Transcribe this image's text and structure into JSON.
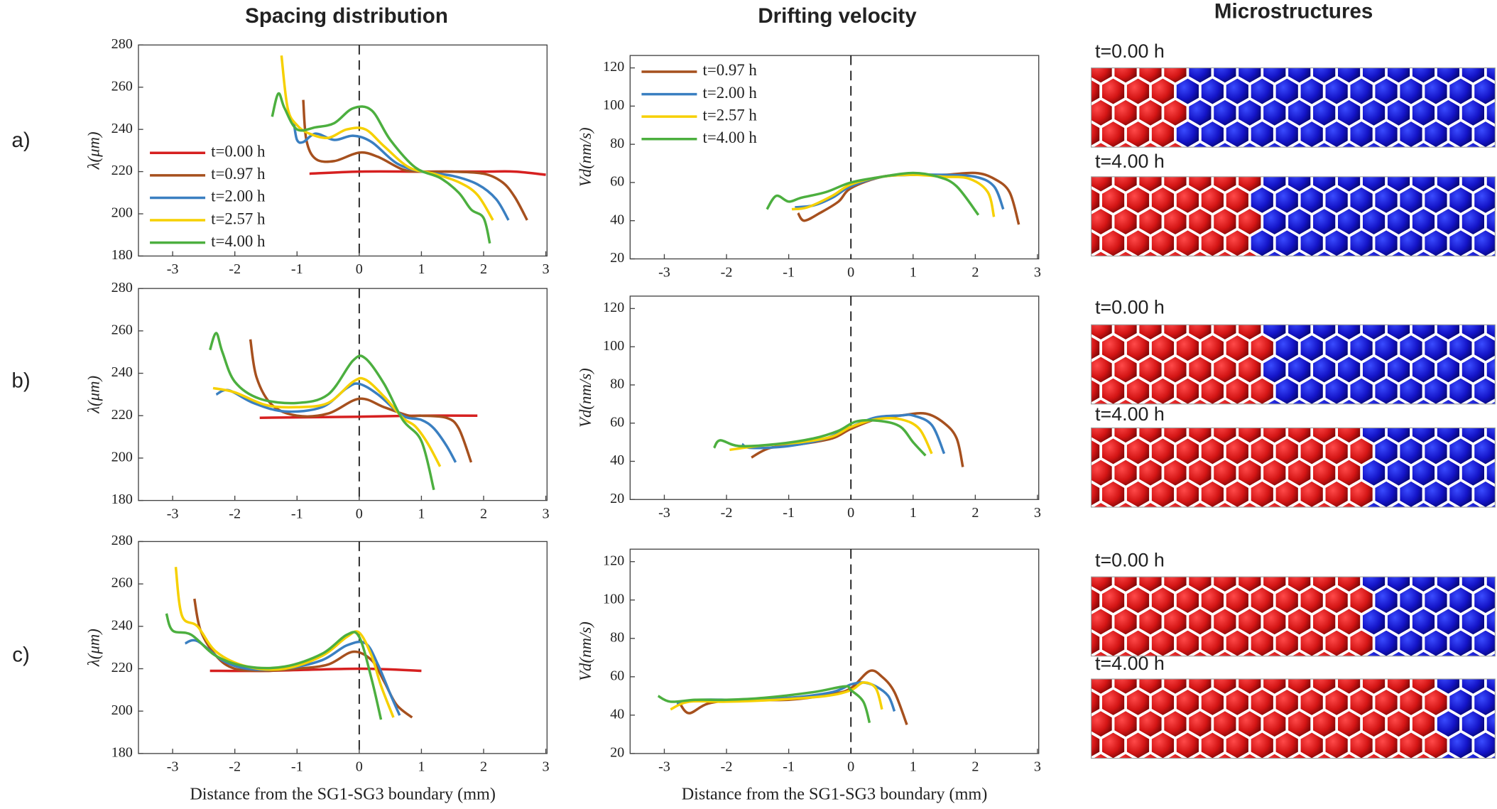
{
  "column_titles": [
    "Spacing distribution",
    "Drifting velocity",
    "Microstructures"
  ],
  "row_labels": [
    "a)",
    "b)",
    "c)"
  ],
  "microstructures": [
    [
      "t=0.00 h",
      "t=4.00 h"
    ],
    [
      "t=0.00 h",
      "t=4.00 h"
    ],
    [
      "t=0.00 h",
      "t=4.00 h"
    ]
  ],
  "chart_data": [
    {
      "type": "line",
      "ylabel": "λ(μm)",
      "xlim": [
        -3.55,
        3.02
      ],
      "ylim": [
        180,
        280
      ],
      "xticks": [
        -3,
        -2,
        -1,
        0,
        1,
        2,
        3
      ],
      "yticks": [
        180,
        200,
        220,
        240,
        260,
        280
      ],
      "reference_line": {
        "x": 0,
        "style": "dashed"
      },
      "legend": "lower-left",
      "series": [
        {
          "name": "t=0.00 h",
          "color": "#d62020",
          "x": [
            -0.8,
            0,
            1,
            2,
            2.5,
            3.0
          ],
          "values": [
            219,
            220,
            220,
            220,
            220,
            218.5
          ]
        },
        {
          "name": "t=0.97 h",
          "color": "#a6501e",
          "x": [
            -0.9,
            -0.85,
            -0.7,
            -0.4,
            0,
            0.3,
            0.7,
            1,
            1.5,
            2.0,
            2.3,
            2.5,
            2.7
          ],
          "values": [
            254,
            235,
            226,
            225,
            229,
            227,
            221,
            220,
            220,
            219,
            215,
            208,
            197
          ]
        },
        {
          "name": "t=2.00 h",
          "color": "#3a7fc1",
          "x": [
            -1.05,
            -1.0,
            -0.9,
            -0.7,
            -0.4,
            -0.1,
            0.2,
            0.6,
            1,
            1.5,
            1.9,
            2.2,
            2.4
          ],
          "values": [
            243,
            235,
            234,
            238,
            235,
            237,
            234,
            224,
            220,
            218,
            214,
            207,
            197
          ]
        },
        {
          "name": "t=2.57 h",
          "color": "#f6d000",
          "x": [
            -1.25,
            -1.15,
            -1.0,
            -0.8,
            -0.5,
            -0.2,
            0.1,
            0.4,
            0.8,
            1.2,
            1.6,
            1.9,
            2.15
          ],
          "values": [
            275,
            250,
            242,
            238,
            236,
            240,
            240,
            232,
            222,
            219,
            215,
            209,
            197
          ]
        },
        {
          "name": "t=4.00 h",
          "color": "#4caf3f",
          "x": [
            -1.4,
            -1.3,
            -1.2,
            -1.0,
            -0.7,
            -0.4,
            -0.1,
            0.2,
            0.5,
            0.9,
            1.3,
            1.6,
            1.8,
            2.0,
            2.1
          ],
          "values": [
            246,
            257,
            250,
            240,
            241,
            243,
            250,
            249,
            235,
            222,
            217,
            210,
            202,
            198,
            186
          ]
        }
      ]
    },
    {
      "type": "line",
      "ylabel": "Vd(nm/s)",
      "xlim": [
        -3.55,
        3.02
      ],
      "ylim": [
        20,
        126.5
      ],
      "xticks": [
        -3,
        -2,
        -1,
        0,
        1,
        2,
        3
      ],
      "yticks": [
        20,
        40,
        60,
        80,
        100,
        120
      ],
      "reference_line": {
        "x": 0,
        "style": "dashed"
      },
      "legend": "upper-left",
      "series": [
        {
          "name": "t=0.97 h",
          "color": "#a6501e",
          "x": [
            -0.85,
            -0.75,
            -0.5,
            -0.2,
            0,
            0.5,
            1,
            1.5,
            2,
            2.3,
            2.55,
            2.7
          ],
          "values": [
            44,
            40,
            44,
            50,
            57,
            63,
            64,
            64,
            65,
            62,
            55,
            38
          ]
        },
        {
          "name": "t=2.00 h",
          "color": "#3a7fc1",
          "x": [
            -0.9,
            -0.6,
            -0.3,
            0,
            0.5,
            1,
            1.5,
            2.0,
            2.3,
            2.45
          ],
          "values": [
            47,
            48,
            52,
            58,
            63,
            64,
            64,
            63,
            58,
            46
          ]
        },
        {
          "name": "t=2.57 h",
          "color": "#f6d000",
          "x": [
            -0.95,
            -0.7,
            -0.3,
            0,
            0.5,
            1,
            1.5,
            1.9,
            2.2,
            2.3
          ],
          "values": [
            46,
            47,
            53,
            59,
            63,
            64,
            63,
            62,
            55,
            42
          ]
        },
        {
          "name": "t=4.00 h",
          "color": "#4caf3f",
          "x": [
            -1.35,
            -1.2,
            -1.0,
            -0.8,
            -0.4,
            0,
            0.5,
            1,
            1.4,
            1.7,
            2.05
          ],
          "values": [
            46,
            53,
            50,
            52,
            55,
            60,
            63,
            65,
            63,
            58,
            43
          ]
        }
      ]
    },
    {
      "type": "line",
      "ylabel": "λ(μm)",
      "xlim": [
        -3.55,
        3.02
      ],
      "ylim": [
        180,
        280
      ],
      "xticks": [
        -3,
        -2,
        -1,
        0,
        1,
        2,
        3
      ],
      "yticks": [
        180,
        200,
        220,
        240,
        260,
        280
      ],
      "reference_line": {
        "x": 0,
        "style": "dashed"
      },
      "series": [
        {
          "color": "#d62020",
          "x": [
            -1.6,
            0,
            1,
            1.9
          ],
          "values": [
            219,
            219.5,
            220,
            220
          ]
        },
        {
          "color": "#a6501e",
          "x": [
            -1.75,
            -1.65,
            -1.4,
            -1.0,
            -0.5,
            0,
            0.4,
            0.8,
            1.0,
            1.4,
            1.6,
            1.8
          ],
          "values": [
            256,
            238,
            225,
            220,
            221,
            228,
            224,
            220,
            220,
            219,
            214,
            198
          ]
        },
        {
          "color": "#3a7fc1",
          "x": [
            -2.3,
            -2.1,
            -1.7,
            -1.2,
            -0.6,
            -0.2,
            0,
            0.3,
            0.7,
            1.0,
            1.2,
            1.4,
            1.55
          ],
          "values": [
            230,
            232,
            226,
            222,
            224,
            233,
            235,
            230,
            220,
            218,
            214,
            206,
            198
          ]
        },
        {
          "color": "#f6d000",
          "x": [
            -2.35,
            -2.0,
            -1.5,
            -1.0,
            -0.5,
            -0.1,
            0.1,
            0.4,
            0.7,
            0.9,
            1.1,
            1.3
          ],
          "values": [
            233,
            231,
            225,
            224,
            226,
            236,
            237,
            229,
            219,
            215,
            207,
            196
          ]
        },
        {
          "color": "#4caf3f",
          "x": [
            -2.4,
            -2.3,
            -2.2,
            -2.0,
            -1.6,
            -1.0,
            -0.5,
            -0.1,
            0.1,
            0.4,
            0.7,
            1.0,
            1.2
          ],
          "values": [
            251,
            259,
            250,
            236,
            228,
            226,
            230,
            246,
            247,
            235,
            218,
            208,
            185
          ]
        }
      ]
    },
    {
      "type": "line",
      "ylabel": "Vd(nm/s)",
      "xlim": [
        -3.55,
        3.02
      ],
      "ylim": [
        20,
        126.5
      ],
      "xticks": [
        -3,
        -2,
        -1,
        0,
        1,
        2,
        3
      ],
      "yticks": [
        20,
        40,
        60,
        80,
        100,
        120
      ],
      "reference_line": {
        "x": 0,
        "style": "dashed"
      },
      "series": [
        {
          "color": "#a6501e",
          "x": [
            -1.6,
            -1.3,
            -0.8,
            -0.3,
            0,
            0.4,
            0.8,
            1.2,
            1.5,
            1.7,
            1.8
          ],
          "values": [
            42,
            47,
            49,
            52,
            57,
            62,
            64,
            65,
            60,
            52,
            37
          ]
        },
        {
          "color": "#3a7fc1",
          "x": [
            -1.75,
            -1.6,
            -1.0,
            -0.4,
            0,
            0.4,
            0.8,
            1.0,
            1.3,
            1.5
          ],
          "values": [
            49,
            47,
            48,
            52,
            58,
            63,
            64,
            64,
            59,
            44
          ]
        },
        {
          "color": "#f6d000",
          "x": [
            -1.95,
            -1.5,
            -0.8,
            -0.3,
            0,
            0.4,
            0.8,
            1.1,
            1.3
          ],
          "values": [
            46,
            48,
            50,
            53,
            58,
            62,
            62,
            57,
            44
          ]
        },
        {
          "color": "#4caf3f",
          "x": [
            -2.2,
            -2.1,
            -1.8,
            -1.2,
            -0.6,
            -0.2,
            0.1,
            0.5,
            0.8,
            1.0,
            1.2
          ],
          "values": [
            47,
            51,
            48,
            49,
            52,
            56,
            61,
            61,
            58,
            50,
            43
          ]
        }
      ]
    },
    {
      "type": "line",
      "ylabel": "λ(μm)",
      "xlabel": "Distance from the SG1-SG3 boundary (mm)",
      "xlim": [
        -3.55,
        3.02
      ],
      "ylim": [
        180,
        280
      ],
      "xticks": [
        -3,
        -2,
        -1,
        0,
        1,
        2,
        3
      ],
      "yticks": [
        180,
        200,
        220,
        240,
        260,
        280
      ],
      "reference_line": {
        "x": 0,
        "style": "dashed"
      },
      "series": [
        {
          "color": "#d62020",
          "x": [
            -2.4,
            -1.5,
            0,
            1.0
          ],
          "values": [
            219,
            219,
            220,
            219
          ]
        },
        {
          "color": "#a6501e",
          "x": [
            -2.65,
            -2.55,
            -2.3,
            -2.0,
            -1.5,
            -1.0,
            -0.5,
            -0.1,
            0.2,
            0.4,
            0.6,
            0.85
          ],
          "values": [
            253,
            238,
            226,
            220,
            219,
            220,
            222,
            228,
            224,
            214,
            203,
            197
          ]
        },
        {
          "color": "#3a7fc1",
          "x": [
            -2.8,
            -2.6,
            -2.2,
            -1.8,
            -1.2,
            -0.6,
            -0.2,
            0.1,
            0.3,
            0.5,
            0.65
          ],
          "values": [
            232,
            233,
            224,
            220,
            220,
            224,
            231,
            232,
            222,
            208,
            198
          ]
        },
        {
          "color": "#f6d000",
          "x": [
            -2.95,
            -2.85,
            -2.6,
            -2.3,
            -1.8,
            -1.2,
            -0.6,
            -0.2,
            0,
            0.2,
            0.35,
            0.55
          ],
          "values": [
            268,
            245,
            240,
            228,
            221,
            220,
            226,
            235,
            237,
            226,
            212,
            197
          ]
        },
        {
          "color": "#4caf3f",
          "x": [
            -3.1,
            -3.0,
            -2.7,
            -2.3,
            -1.8,
            -1.2,
            -0.6,
            -0.2,
            0,
            0.2,
            0.35
          ],
          "values": [
            246,
            238,
            236,
            226,
            221,
            221,
            227,
            236,
            235,
            215,
            196
          ]
        }
      ]
    },
    {
      "type": "line",
      "ylabel": "Vd(nm/s)",
      "xlabel": "Distance from the SG1-SG3 boundary (mm)",
      "xlim": [
        -3.55,
        3.02
      ],
      "ylim": [
        20,
        126.5
      ],
      "xticks": [
        -3,
        -2,
        -1,
        0,
        1,
        2,
        3
      ],
      "yticks": [
        20,
        40,
        60,
        80,
        100,
        120
      ],
      "reference_line": {
        "x": 0,
        "style": "dashed"
      },
      "series": [
        {
          "color": "#a6501e",
          "x": [
            -2.75,
            -2.6,
            -2.3,
            -1.8,
            -1,
            -0.3,
            0,
            0.3,
            0.5,
            0.7,
            0.9
          ],
          "values": [
            46,
            41,
            46,
            48,
            48,
            51,
            54,
            63,
            60,
            52,
            35
          ]
        },
        {
          "color": "#3a7fc1",
          "x": [
            -2.8,
            -2.4,
            -1.8,
            -1,
            -0.3,
            0,
            0.2,
            0.4,
            0.6,
            0.7
          ],
          "values": [
            46,
            48,
            48,
            49,
            52,
            56,
            57,
            55,
            50,
            42
          ]
        },
        {
          "color": "#f6d000",
          "x": [
            -2.9,
            -2.6,
            -2,
            -1.2,
            -0.4,
            0,
            0.2,
            0.4,
            0.5
          ],
          "values": [
            43,
            47,
            47,
            48,
            50,
            53,
            57,
            54,
            43
          ]
        },
        {
          "color": "#4caf3f",
          "x": [
            -3.1,
            -2.9,
            -2.5,
            -2,
            -1.4,
            -0.6,
            -0.1,
            0,
            0.2,
            0.3
          ],
          "values": [
            50,
            47,
            48,
            48,
            49,
            52,
            55,
            53,
            47,
            36
          ]
        }
      ]
    }
  ]
}
